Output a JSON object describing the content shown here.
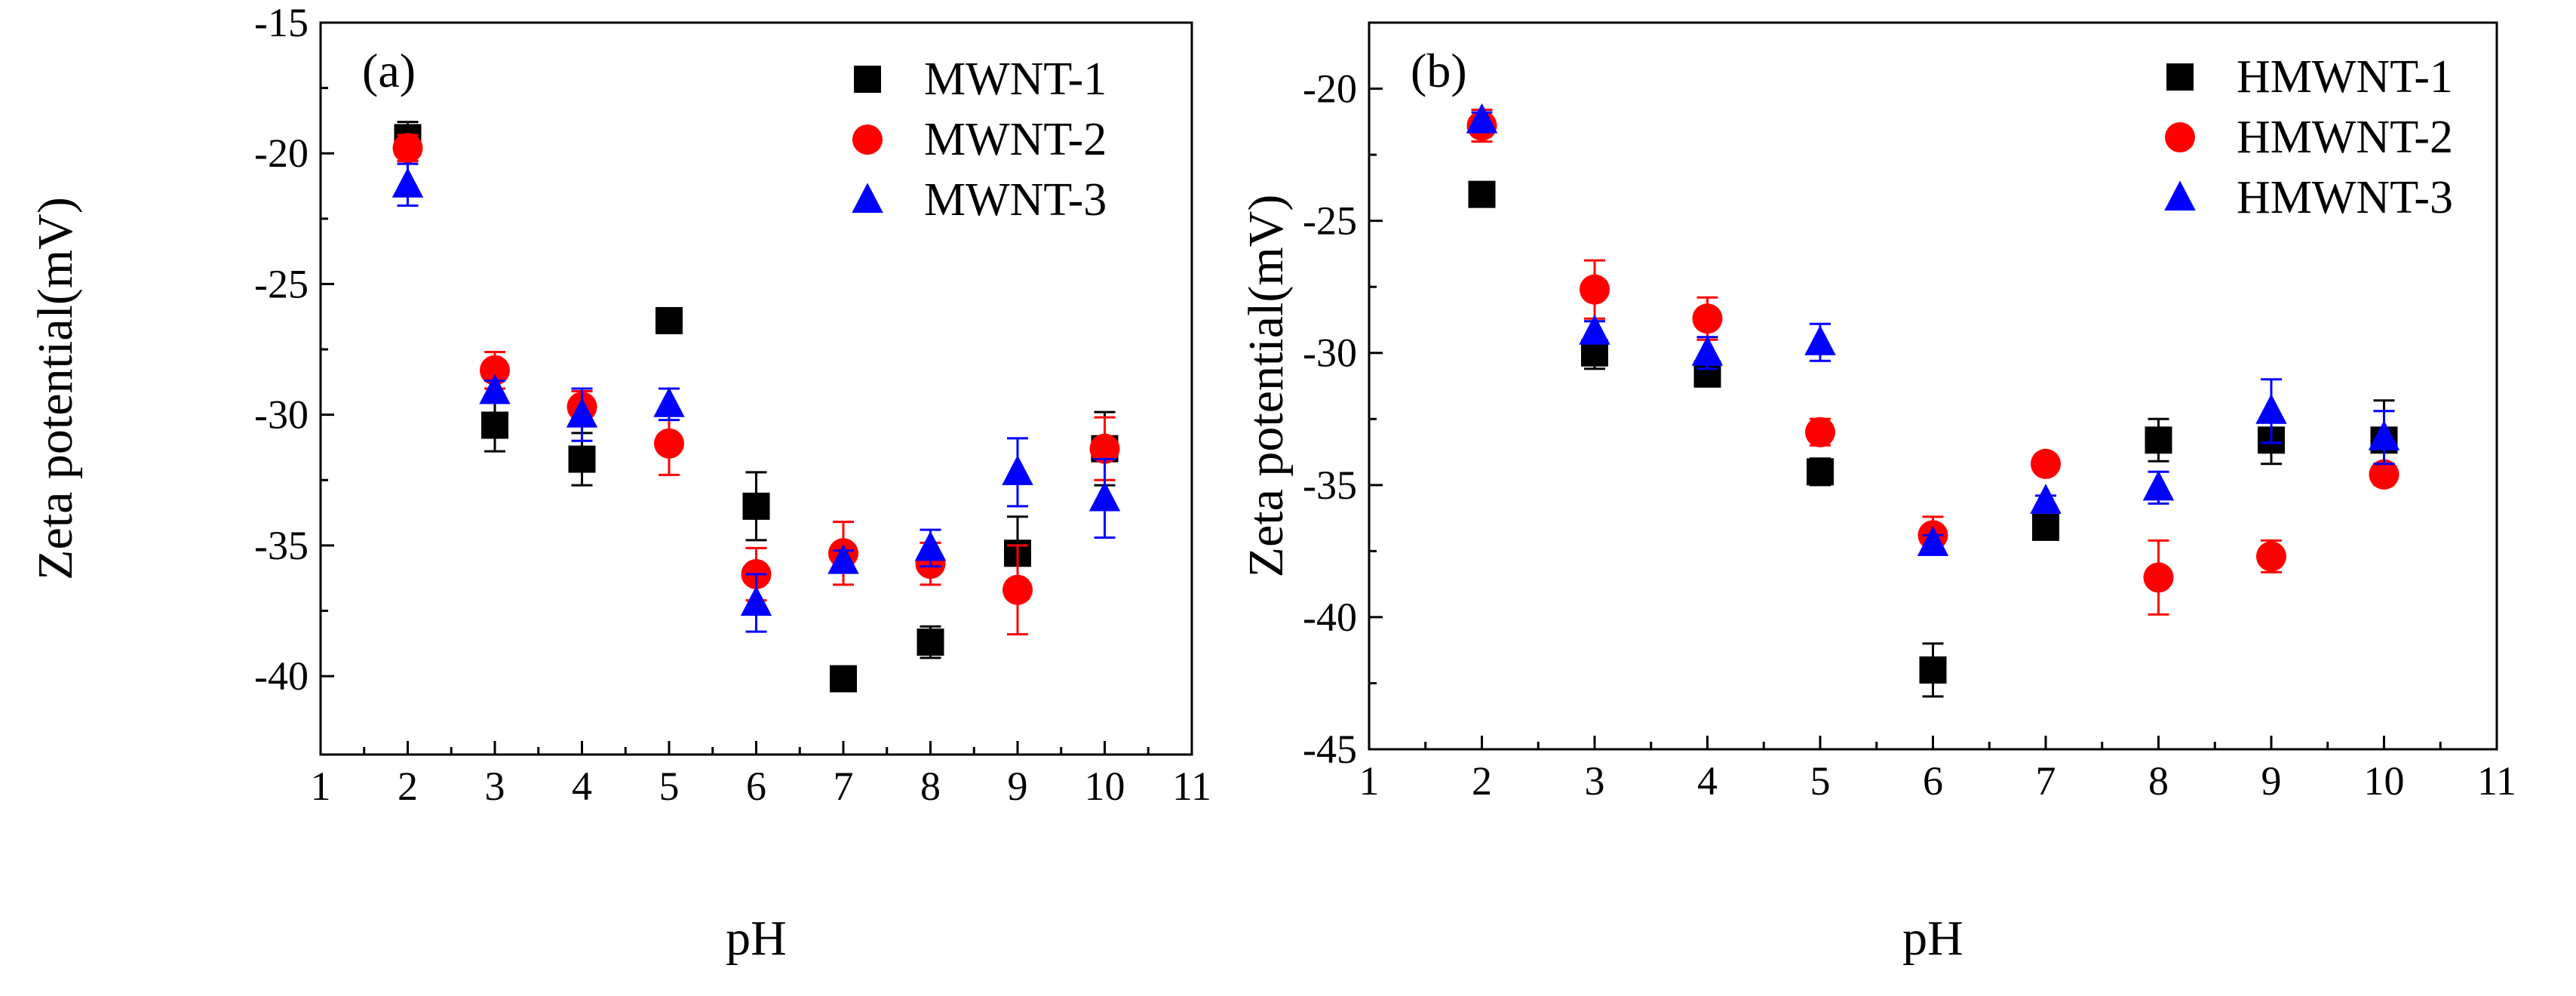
{
  "colors": {
    "MWNT-1": "#000000",
    "MWNT-2": "#ff0000",
    "MWNT-3": "#0000ff"
  },
  "chart_data": [
    {
      "type": "scatter",
      "panel": "(a)",
      "xlabel": "pH",
      "ylabel": "Zeta potential(mV)",
      "xlim": [
        1,
        11
      ],
      "ylim": [
        -43,
        -15
      ],
      "xticks": [
        1,
        2,
        3,
        4,
        5,
        6,
        7,
        8,
        9,
        10,
        11
      ],
      "yticks": [
        -40,
        -35,
        -30,
        -25,
        -20,
        -15
      ],
      "legend_position": "top-right",
      "series": [
        {
          "name": "MWNT-1",
          "marker": "square",
          "color": "#000000",
          "x": [
            2,
            3,
            4,
            5,
            6,
            7,
            8,
            9,
            10
          ],
          "y": [
            -19.4,
            -30.4,
            -31.7,
            -26.4,
            -33.5,
            -40.1,
            -38.7,
            -35.3,
            -31.3
          ],
          "err": [
            0.6,
            1.0,
            1.0,
            0.0,
            1.3,
            0.4,
            0.6,
            1.4,
            1.4
          ]
        },
        {
          "name": "MWNT-2",
          "marker": "circle",
          "color": "#ff0000",
          "x": [
            2,
            3,
            4,
            5,
            6,
            7,
            8,
            9,
            10
          ],
          "y": [
            -19.8,
            -28.3,
            -29.7,
            -31.1,
            -36.1,
            -35.3,
            -35.7,
            -36.7,
            -31.3
          ],
          "err": [
            0.5,
            0.7,
            0.6,
            1.2,
            1.0,
            1.2,
            0.8,
            1.7,
            1.2
          ]
        },
        {
          "name": "MWNT-3",
          "marker": "triangle",
          "color": "#0000ff",
          "x": [
            2,
            3,
            4,
            5,
            6,
            7,
            8,
            9,
            10
          ],
          "y": [
            -21.2,
            -29.1,
            -30.0,
            -29.6,
            -37.2,
            -35.6,
            -35.1,
            -32.2,
            -33.2
          ],
          "err": [
            0.8,
            0.4,
            1.0,
            0.6,
            1.1,
            0.4,
            0.7,
            1.3,
            1.5
          ]
        }
      ]
    },
    {
      "type": "scatter",
      "panel": "(b)",
      "xlabel": "pH",
      "ylabel": "Zeta potential(mV)",
      "xlim": [
        1,
        11
      ],
      "ylim": [
        -45,
        -17.5
      ],
      "xticks": [
        1,
        2,
        3,
        4,
        5,
        6,
        7,
        8,
        9,
        10,
        11
      ],
      "yticks": [
        -45,
        -40,
        -35,
        -30,
        -25,
        -20
      ],
      "legend_position": "top-right",
      "series": [
        {
          "name": "HMWNT-1",
          "marker": "square",
          "color": "#000000",
          "x": [
            2,
            3,
            4,
            5,
            6,
            7,
            8,
            9,
            10
          ],
          "y": [
            -24.0,
            -30.0,
            -30.8,
            -34.5,
            -42.0,
            -36.6,
            -33.3,
            -33.3,
            -33.3
          ],
          "err": [
            0.4,
            0.6,
            0.4,
            0.5,
            1.0,
            0.0,
            0.8,
            0.9,
            1.5
          ]
        },
        {
          "name": "HMWNT-2",
          "marker": "circle",
          "color": "#ff0000",
          "x": [
            2,
            3,
            4,
            5,
            6,
            7,
            8,
            9,
            10
          ],
          "y": [
            -21.4,
            -27.6,
            -28.7,
            -33.0,
            -36.9,
            -34.2,
            -38.5,
            -37.7,
            -34.6
          ],
          "err": [
            0.6,
            1.1,
            0.8,
            0.5,
            0.7,
            0.0,
            1.4,
            0.6,
            0.4
          ]
        },
        {
          "name": "HMWNT-3",
          "marker": "triangle",
          "color": "#0000ff",
          "x": [
            2,
            3,
            4,
            5,
            6,
            7,
            8,
            9,
            10
          ],
          "y": [
            -21.2,
            -29.2,
            -30.0,
            -29.6,
            -37.2,
            -35.6,
            -35.1,
            -32.2,
            -33.2
          ],
          "err": [
            0.3,
            0.4,
            0.6,
            0.7,
            0.3,
            0.2,
            0.6,
            1.2,
            1.0
          ]
        }
      ]
    }
  ]
}
